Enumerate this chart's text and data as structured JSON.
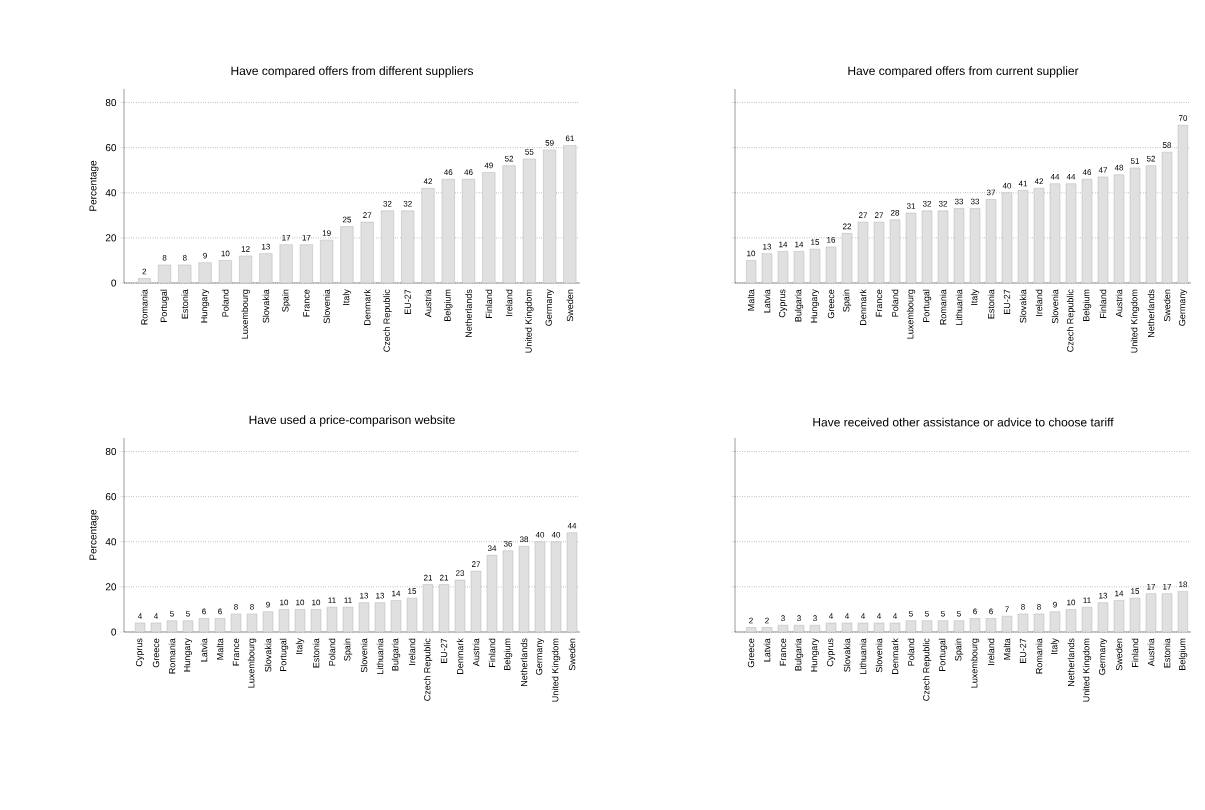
{
  "chart_data": [
    {
      "type": "bar",
      "title": "Have compared offers from different suppliers",
      "ylabel": "Percentage",
      "categories": [
        "Romania",
        "Portugal",
        "Estonia",
        "Hungary",
        "Poland",
        "Luxembourg",
        "Slovakia",
        "Spain",
        "France",
        "Slovenia",
        "Italy",
        "Denmark",
        "Czech Republic",
        "EU-27",
        "Austria",
        "Belgium",
        "Netherlands",
        "Finland",
        "Ireland",
        "United Kingdom",
        "Germany",
        "Sweden"
      ],
      "values": [
        2,
        8,
        8,
        9,
        10,
        12,
        13,
        17,
        17,
        19,
        25,
        27,
        32,
        32,
        42,
        46,
        46,
        49,
        52,
        55,
        59,
        61
      ],
      "color": "#e0e0e0",
      "ylim": [
        0,
        86
      ],
      "yticks": [
        0,
        20,
        40,
        60,
        80
      ],
      "grid": "y",
      "data_labels": true
    },
    {
      "type": "bar",
      "title": "Have compared offers from current supplier",
      "categories": [
        "Malta",
        "Latvia",
        "Cyprus",
        "Bulgaria",
        "Hungary",
        "Greece",
        "Spain",
        "Denmark",
        "France",
        "Poland",
        "Luxembourg",
        "Portugal",
        "Romania",
        "Lithuania",
        "Italy",
        "Estonia",
        "EU-27",
        "Slovakia",
        "Ireland",
        "Slovenia",
        "Czech Republic",
        "Belgium",
        "Finland",
        "Austria",
        "United Kingdom",
        "Netherlands",
        "Sweden",
        "Germany"
      ],
      "values": [
        10,
        13,
        14,
        14,
        15,
        16,
        22,
        27,
        27,
        28,
        31,
        32,
        32,
        33,
        33,
        37,
        40,
        41,
        42,
        44,
        44,
        46,
        47,
        48,
        51,
        52,
        58,
        70
      ],
      "color": "#e0e0e0",
      "ylim": [
        0,
        86
      ],
      "yticks": [
        0,
        20,
        40,
        60,
        80
      ],
      "grid": "y",
      "data_labels": true,
      "tick_labels": "x"
    },
    {
      "type": "bar",
      "title": "Have used a price-comparison website",
      "ylabel": "Percentage",
      "categories": [
        "Cyprus",
        "Greece",
        "Romania",
        "Hungary",
        "Latvia",
        "Malta",
        "France",
        "Luxembourg",
        "Slovakia",
        "Portugal",
        "Italy",
        "Estonia",
        "Poland",
        "Spain",
        "Slovenia",
        "Lithuania",
        "Bulgaria",
        "Ireland",
        "Czech Republic",
        "EU-27",
        "Denmark",
        "Austria",
        "Finland",
        "Belgium",
        "Netherlands",
        "Germany",
        "United Kingdom",
        "Sweden"
      ],
      "values": [
        4,
        4,
        5,
        5,
        6,
        6,
        8,
        8,
        9,
        10,
        10,
        10,
        11,
        11,
        13,
        13,
        14,
        15,
        21,
        21,
        23,
        27,
        34,
        36,
        38,
        40,
        40,
        44
      ],
      "color": "#e0e0e0",
      "ylim": [
        0,
        86
      ],
      "yticks": [
        0,
        20,
        40,
        60,
        80
      ],
      "grid": "y",
      "data_labels": true
    },
    {
      "type": "bar",
      "title": "Have received other assistance or advice to choose tariff",
      "categories": [
        "Greece",
        "Latvia",
        "France",
        "Bulgaria",
        "Hungary",
        "Cyprus",
        "Slovakia",
        "Lithuania",
        "Slovenia",
        "Denmark",
        "Poland",
        "Czech Republic",
        "Portugal",
        "Spain",
        "Luxembourg",
        "Ireland",
        "Malta",
        "EU-27",
        "Romania",
        "Italy",
        "Netherlands",
        "United Kingdom",
        "Germany",
        "Sweden",
        "Finland",
        "Austria",
        "Estonia",
        "Belgium"
      ],
      "values": [
        2,
        2,
        3,
        3,
        3,
        4,
        4,
        4,
        4,
        4,
        5,
        5,
        5,
        5,
        6,
        6,
        7,
        8,
        8,
        9,
        10,
        11,
        13,
        14,
        15,
        17,
        17,
        18
      ],
      "color": "#e0e0e0",
      "ylim": [
        0,
        86
      ],
      "yticks": [
        0,
        20,
        40,
        60,
        80
      ],
      "grid": "y",
      "data_labels": true,
      "tick_labels": "x"
    }
  ]
}
